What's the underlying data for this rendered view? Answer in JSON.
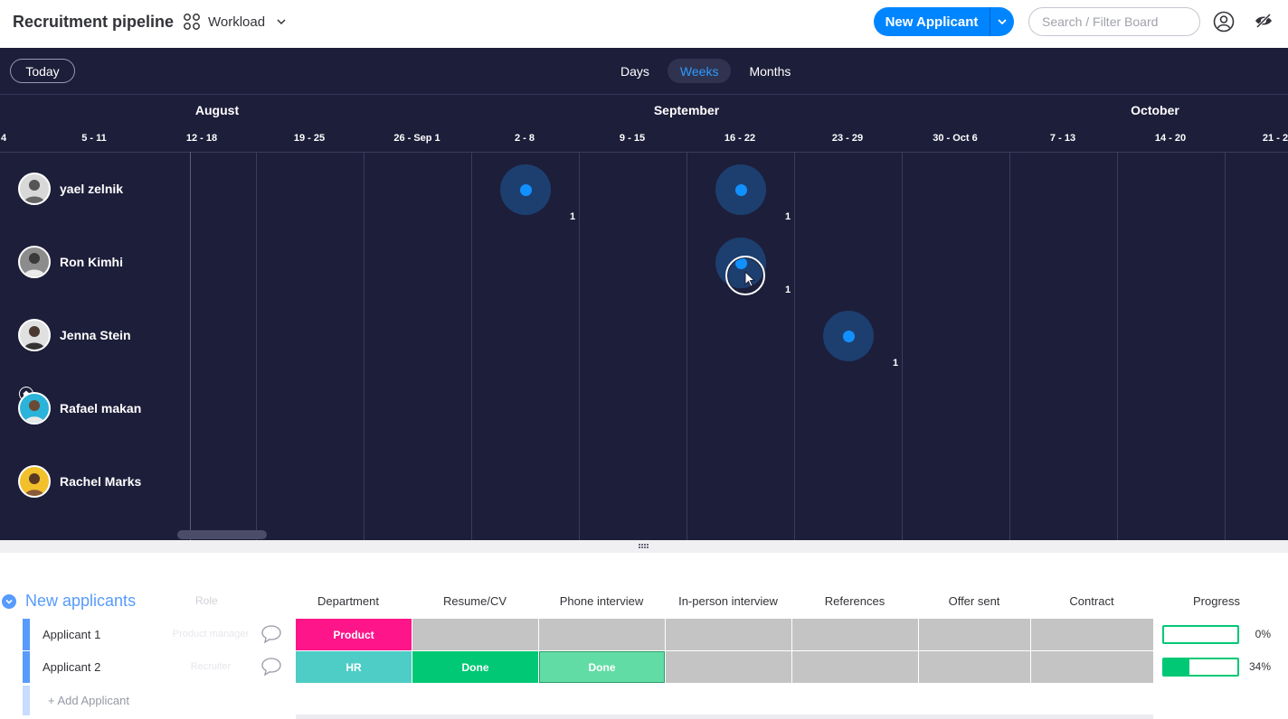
{
  "header": {
    "title": "Recruitment pipeline",
    "view_label": "Workload",
    "new_button_label": "New Applicant",
    "search_placeholder": "Search / Filter Board"
  },
  "timeline": {
    "today_label": "Today",
    "scales": [
      "Days",
      "Weeks",
      "Months"
    ],
    "active_scale": "Weeks",
    "months": [
      "August",
      "September",
      "October"
    ],
    "weeks": [
      "4",
      "5 - 11",
      "12 - 18",
      "19 - 25",
      "26 - Sep 1",
      "2 - 8",
      "9 - 15",
      "16 - 22",
      "23 - 29",
      "30 - Oct 6",
      "7 - 13",
      "14 - 20",
      "21 - 2"
    ],
    "people": [
      {
        "name": "yael zelnik",
        "avatar_color": "#d8d8d8"
      },
      {
        "name": "Ron Kimhi",
        "avatar_color": "#8c8c8c"
      },
      {
        "name": "Jenna Stein",
        "avatar_color": "#e0e0e0"
      },
      {
        "name": "Rafael makan",
        "avatar_color": "#2bb3d9"
      },
      {
        "name": "Rachel Marks",
        "avatar_color": "#f2c02b"
      }
    ],
    "assignments": [
      {
        "person": "yael zelnik",
        "week": "2 - 8",
        "count": "1"
      },
      {
        "person": "yael zelnik",
        "week": "16 - 22",
        "count": "1"
      },
      {
        "person": "Ron Kimhi",
        "week": "16 - 22",
        "count": "1"
      },
      {
        "person": "Jenna Stein",
        "week": "23 - 29",
        "count": "1"
      }
    ],
    "colors": {
      "background": "#1d1e3a",
      "bubble": "#1d3f70",
      "dot": "#1191ff",
      "active_scale": "#2b9bff"
    }
  },
  "table": {
    "group_title": "New applicants",
    "role_header": "Role",
    "columns": [
      "Department",
      "Resume/CV",
      "Phone interview",
      "In-person interview",
      "References",
      "Offer sent",
      "Contract",
      "Progress"
    ],
    "rows": [
      {
        "name": "Applicant 1",
        "role": "Product manager",
        "department": "Product",
        "department_color": "#ff158a",
        "resume": "",
        "phone": "",
        "progress_pct": "0%",
        "progress": 0
      },
      {
        "name": "Applicant 2",
        "role": "Recruiter",
        "department": "HR",
        "department_color": "#4eccc6",
        "resume": "Done",
        "phone": "Done",
        "progress_pct": "34%",
        "progress": 0.34
      }
    ],
    "add_label": "+ Add Applicant",
    "colors": {
      "group": "#579bfc",
      "done": "#00c875",
      "done_light": "#62dca5",
      "empty": "#c4c4c4"
    }
  }
}
